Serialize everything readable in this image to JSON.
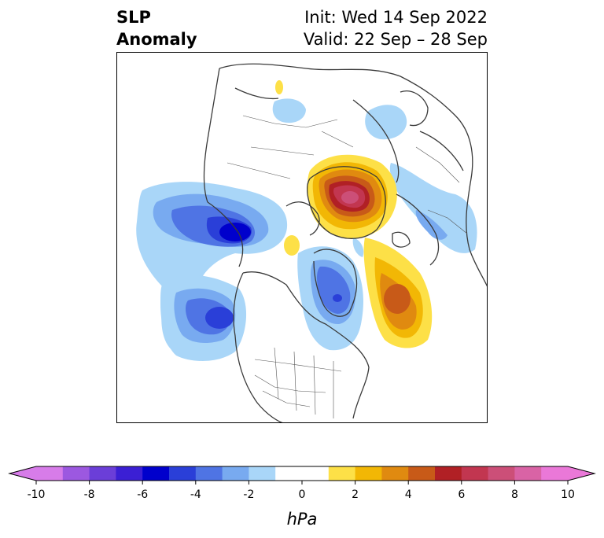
{
  "header": {
    "title_line1": "SLP",
    "title_line2": "Anomaly",
    "init_text": "Init: Wed 14 Sep 2022",
    "valid_text": "Valid: 22 Sep – 28 Sep"
  },
  "map": {
    "projection": "north-polar-stereographic",
    "field": "SLP anomaly",
    "features": [
      {
        "name": "North Pacific low",
        "sign": "negative",
        "peak_hPa": -6
      },
      {
        "name": "Gulf of Alaska low",
        "sign": "negative",
        "peak_hPa": -5
      },
      {
        "name": "Western Atlantic low",
        "sign": "negative",
        "peak_hPa": -4
      },
      {
        "name": "Siberian Arctic high",
        "sign": "positive",
        "peak_hPa": 8
      },
      {
        "name": "North Atlantic high",
        "sign": "positive",
        "peak_hPa": 5
      }
    ]
  },
  "colorbar": {
    "unit_label": "hPa",
    "min": -10,
    "max": 10,
    "extend": "both",
    "tick_labels": [
      "-10",
      "-8",
      "-6",
      "-4",
      "-2",
      "0",
      "2",
      "4",
      "6",
      "8",
      "10"
    ],
    "colors": [
      "#d77ce9",
      "#9c58e0",
      "#6b3ed8",
      "#3b1fd4",
      "#0000cc",
      "#2a3fd8",
      "#4f74e4",
      "#78aaf0",
      "#a9d6f8",
      "#ffffff",
      "#ffffff",
      "#fde047",
      "#f2b705",
      "#e08a10",
      "#c85a18",
      "#b12025",
      "#c23650",
      "#cc4f78",
      "#d963a5",
      "#ea78d8"
    ],
    "extend_low_color": "#d77ce9",
    "extend_high_color": "#ea78d8"
  }
}
